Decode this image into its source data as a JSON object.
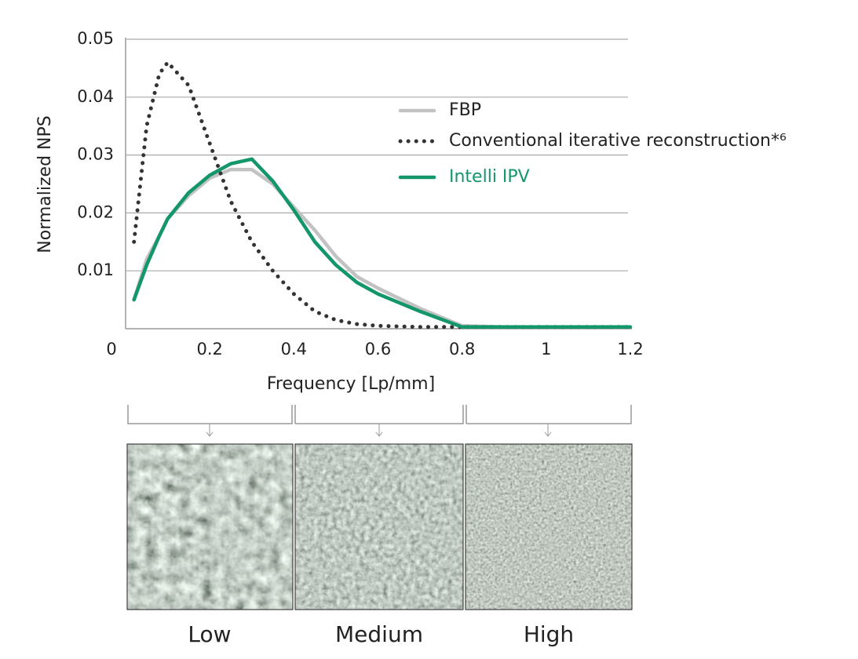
{
  "chart_data": {
    "type": "line",
    "x_label": "Frequency [Lp/mm]",
    "y_label": "Normalized NPS",
    "x": [
      0.02,
      0.05,
      0.08,
      0.1,
      0.15,
      0.2,
      0.25,
      0.3,
      0.35,
      0.4,
      0.45,
      0.5,
      0.55,
      0.6,
      0.7,
      0.8,
      0.9,
      1.0,
      1.1,
      1.2
    ],
    "series": [
      {
        "name": "FBP",
        "color": "#c2c2c2",
        "style": "solid",
        "values": [
          0.005,
          0.012,
          0.016,
          0.019,
          0.023,
          0.026,
          0.0275,
          0.0275,
          0.025,
          0.021,
          0.017,
          0.0125,
          0.009,
          0.007,
          0.0035,
          0.0005,
          0.0003,
          0.0003,
          0.0003,
          0.0003
        ]
      },
      {
        "name": "Conventional iterative reconstruction*⁶",
        "color": "#333333",
        "style": "dotted",
        "values": [
          0.015,
          0.035,
          0.044,
          0.046,
          0.042,
          0.032,
          0.022,
          0.015,
          0.01,
          0.006,
          0.003,
          0.0015,
          0.0008,
          0.0005,
          0.0003,
          0.0003,
          0.0003,
          0.0003,
          0.0003,
          0.0003
        ]
      },
      {
        "name": "Intelli IPV",
        "color": "#13976a",
        "style": "solid",
        "values": [
          0.005,
          0.011,
          0.016,
          0.019,
          0.0235,
          0.0265,
          0.0285,
          0.0293,
          0.0255,
          0.0205,
          0.015,
          0.011,
          0.008,
          0.006,
          0.003,
          0.0003,
          0.0003,
          0.0003,
          0.0003,
          0.0003
        ]
      }
    ],
    "xlim": [
      0,
      1.2
    ],
    "xticks": [
      0,
      0.2,
      0.4,
      0.6,
      0.8,
      1,
      1.2
    ],
    "ylim": [
      0,
      0.05
    ],
    "yticks": [
      0.01,
      0.02,
      0.03,
      0.04,
      0.05
    ],
    "grid": true,
    "panels": [
      "Low",
      "Medium",
      "High"
    ]
  }
}
